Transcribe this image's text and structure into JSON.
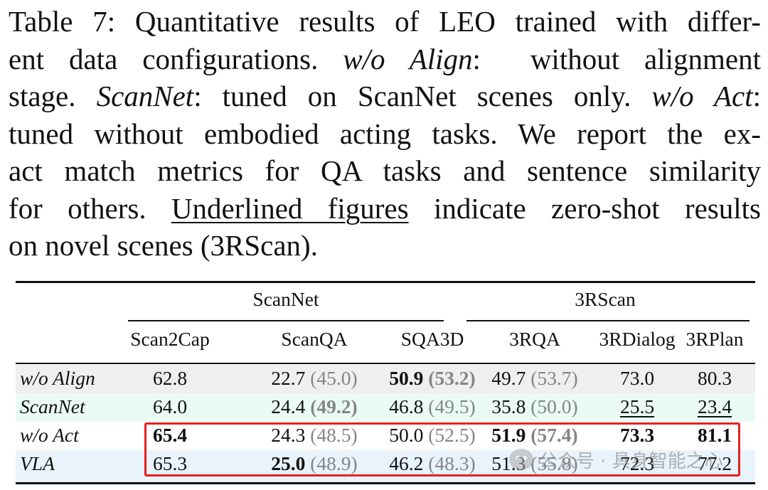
{
  "caption": {
    "lines": [
      [
        {
          "t": "Table 7: Quantitative results of LEO trained with differ-"
        }
      ],
      [
        {
          "t": "ent data configurations. "
        },
        {
          "t": "w/o Align",
          "i": true
        },
        {
          "t": ":  without alignment"
        }
      ],
      [
        {
          "t": "stage. "
        },
        {
          "t": "ScanNet",
          "i": true
        },
        {
          "t": ": tuned on ScanNet scenes only. "
        },
        {
          "t": "w/o Act",
          "i": true
        },
        {
          "t": ":"
        }
      ],
      [
        {
          "t": "tuned without embodied acting tasks. We report the ex-"
        }
      ],
      [
        {
          "t": "act match metrics for QA tasks and sentence similarity"
        }
      ],
      [
        {
          "t": "for others. "
        },
        {
          "t": "Underlined figures",
          "u": true
        },
        {
          "t": " indicate zero-shot results"
        }
      ],
      [
        {
          "t": "on novel scenes (3RScan)."
        }
      ]
    ]
  },
  "table": {
    "groups": [
      {
        "label": "ScanNet"
      },
      {
        "label": "3RScan"
      }
    ],
    "columns": [
      "Scan2Cap",
      "ScanQA",
      "SQA3D",
      "3RQA",
      "3RDialog",
      "3RPlan"
    ],
    "rows": [
      {
        "label": "w/o Align",
        "bg": "#efefef",
        "cells": [
          [
            {
              "t": "62.8"
            }
          ],
          [
            {
              "t": "22.7"
            },
            {
              "t": " (45.0)",
              "g": true
            }
          ],
          [
            {
              "t": "50.9",
              "b": true
            },
            {
              "t": " "
            },
            {
              "t": "(53.2)",
              "b": true,
              "g": true
            }
          ],
          [
            {
              "t": "49.7"
            },
            {
              "t": " (53.7)",
              "g": true
            }
          ],
          [
            {
              "t": "73.0"
            }
          ],
          [
            {
              "t": "80.3"
            }
          ]
        ]
      },
      {
        "label": "ScanNet",
        "bg": "#eafbf4",
        "cells": [
          [
            {
              "t": "64.0"
            }
          ],
          [
            {
              "t": "24.4"
            },
            {
              "t": " "
            },
            {
              "t": "(49.2)",
              "b": true,
              "g": true
            }
          ],
          [
            {
              "t": "46.8"
            },
            {
              "t": " (49.5)",
              "g": true
            }
          ],
          [
            {
              "t": "35.8"
            },
            {
              "t": " (50.0)",
              "g": true
            }
          ],
          [
            {
              "t": "25.5",
              "u": true
            }
          ],
          [
            {
              "t": "23.4",
              "u": true
            }
          ]
        ]
      },
      {
        "label": "w/o Act",
        "bg": "#ffffff",
        "cells": [
          [
            {
              "t": "65.4",
              "b": true
            }
          ],
          [
            {
              "t": "24.3"
            },
            {
              "t": " (48.5)",
              "g": true
            }
          ],
          [
            {
              "t": "50.0"
            },
            {
              "t": " (52.5)",
              "g": true
            }
          ],
          [
            {
              "t": "51.9",
              "b": true
            },
            {
              "t": " "
            },
            {
              "t": "(57.4)",
              "b": true,
              "g": true
            }
          ],
          [
            {
              "t": "73.3",
              "b": true
            }
          ],
          [
            {
              "t": "81.1",
              "b": true
            }
          ]
        ]
      },
      {
        "label": "VLA",
        "bg": "#e9f3fb",
        "cells": [
          [
            {
              "t": "65.3"
            }
          ],
          [
            {
              "t": "25.0",
              "b": true
            },
            {
              "t": " (48.9)",
              "g": true
            }
          ],
          [
            {
              "t": "46.2"
            },
            {
              "t": " (48.3)",
              "g": true
            }
          ],
          [
            {
              "t": "51.3"
            },
            {
              "t": " (55.8)",
              "g": true
            }
          ],
          [
            {
              "t": "72.3"
            }
          ],
          [
            {
              "t": "77.2"
            }
          ]
        ]
      }
    ]
  },
  "watermark": {
    "text": "公众号 · 具身智能之心"
  },
  "colors": {
    "highlight_border": "#e8201e",
    "gray_text": "#858585"
  }
}
